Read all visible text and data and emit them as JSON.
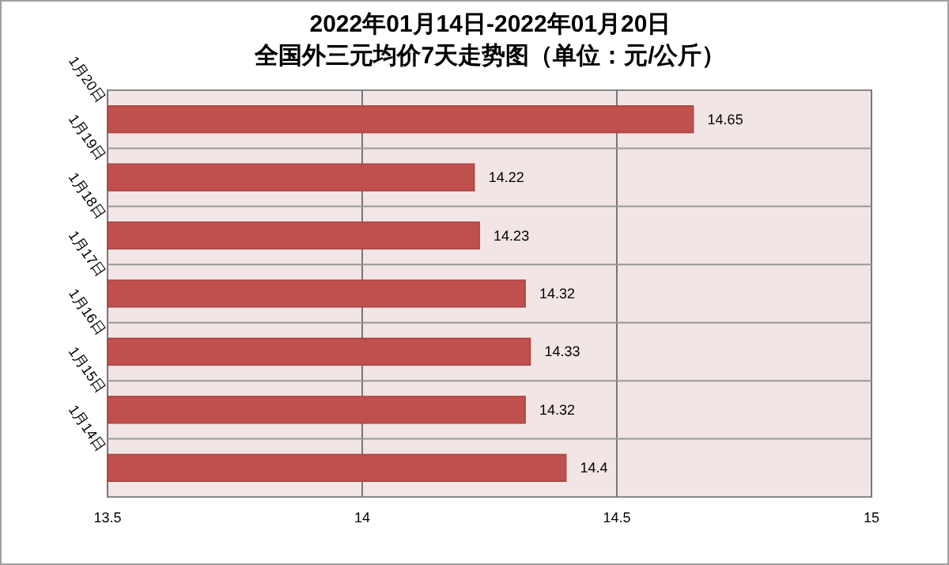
{
  "chart_data": {
    "type": "bar",
    "orientation": "horizontal",
    "title": "2022年01月14日-2022年01月20日",
    "subtitle": "全国外三元均价7天走势图（单位：元/公斤）",
    "categories": [
      "1月20日",
      "1月19日",
      "1月18日",
      "1月17日",
      "1月16日",
      "1月15日",
      "1月14日"
    ],
    "values": [
      14.65,
      14.22,
      14.23,
      14.32,
      14.33,
      14.32,
      14.4
    ],
    "color": "#c0504d",
    "xlim": [
      13.5,
      15
    ],
    "xticks": [
      13.5,
      14,
      14.5,
      15
    ],
    "grid": true,
    "data_labels": true
  }
}
